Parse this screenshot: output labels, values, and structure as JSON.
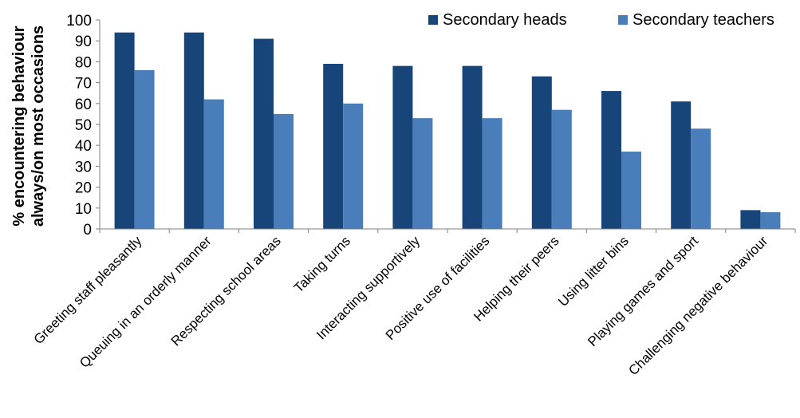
{
  "chart_data": {
    "type": "bar",
    "title": "",
    "xlabel": "",
    "ylabel_lines": [
      "% encountering behaviour",
      "always/on most occasions"
    ],
    "ylim": [
      0,
      100
    ],
    "yticks": [
      0,
      10,
      20,
      30,
      40,
      50,
      60,
      70,
      80,
      90,
      100
    ],
    "categories": [
      "Greeting staff pleasantly",
      "Queuing in an orderly manner",
      "Respecting school areas",
      "Taking turns",
      "Interacting supportively",
      "Positive use of facilities",
      "Helping their peers",
      "Using litter bins",
      "Playing games and sport",
      "Challenging negative behaviour"
    ],
    "series": [
      {
        "name": "Secondary heads",
        "color": "#17457A",
        "values": [
          94,
          94,
          91,
          79,
          78,
          78,
          73,
          66,
          61,
          9
        ]
      },
      {
        "name": "Secondary teachers",
        "color": "#4A7EBB",
        "values": [
          76,
          62,
          55,
          60,
          53,
          53,
          57,
          37,
          48,
          8
        ]
      }
    ],
    "grid": false,
    "legend_position": "top-right"
  }
}
